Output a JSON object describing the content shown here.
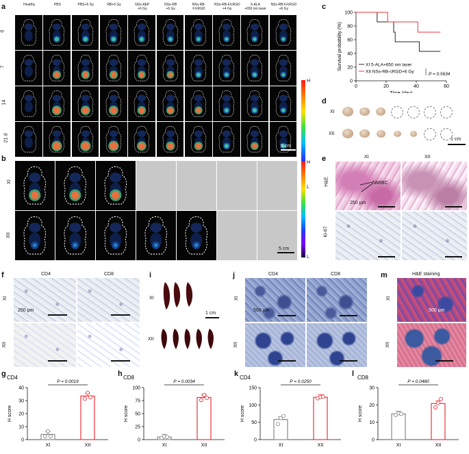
{
  "panels": {
    "a": "a",
    "b": "b",
    "c": "c",
    "d": "d",
    "e": "e",
    "f": "f",
    "g": "g",
    "h": "h",
    "i": "i",
    "j": "j",
    "k": "k",
    "l": "l",
    "m": "m"
  },
  "panel_a": {
    "columns": [
      "Healthy",
      "PBS",
      "PBS+6 Gy",
      "RB+6 Gy",
      "NSs-AEP\n+6 Gy",
      "NSs-RB\n+6 Gy",
      "NSs-RB-\nF/cRGD",
      "NSs-RB-F/cRGD\n+4 Gy",
      "5-ALA\n+650 nm laser",
      "NSs-RB-F/cRGD\n+6 Gy"
    ],
    "rows": [
      "0",
      "7",
      "14",
      "21 d"
    ],
    "colorbar_high": "H",
    "colorbar_low": "L",
    "scale_bar": "5 cm"
  },
  "panel_b": {
    "rows": [
      "XI",
      "XII"
    ],
    "colorbar_high": "H",
    "colorbar_low": "L",
    "scale_bar": "5 cm"
  },
  "panel_d": {
    "rows": [
      "XI",
      "XII"
    ],
    "scale_bar": "1 cm"
  },
  "panel_e": {
    "cols": [
      "XI",
      "XII"
    ],
    "rows": [
      "H&E",
      "Ki-67"
    ],
    "annotation": "NMIBC",
    "scale_bar": "250 μm"
  },
  "panel_f": {
    "cols": [
      "CD4",
      "CD8"
    ],
    "rows": [
      "XI",
      "XII"
    ],
    "scale_bar": "250 μm"
  },
  "panel_i": {
    "rows": [
      "XI",
      "XII"
    ],
    "scale_bar": "1 cm"
  },
  "panel_j": {
    "cols": [
      "CD4",
      "CD8"
    ],
    "rows": [
      "XI",
      "XII"
    ],
    "scale_bar": "500 μm"
  },
  "panel_m": {
    "title": "H&E staining",
    "rows": [
      "XI",
      "XII"
    ],
    "scale_bar": "500 μm"
  },
  "chart_data": [
    {
      "id": "c",
      "type": "line",
      "xlabel": "Time (day)",
      "ylabel": "Survival probability (%)",
      "xlim": [
        0,
        60
      ],
      "ylim": [
        0,
        100
      ],
      "xticks": [
        0,
        20,
        40,
        60
      ],
      "yticks": [
        0,
        20,
        40,
        60,
        80,
        100
      ],
      "pvalue": "P = 0.5634",
      "series": [
        {
          "name": "XI   5-ALA+650 nm laser",
          "color": "#222222",
          "x": [
            0,
            14,
            14,
            25,
            25,
            26,
            26,
            42,
            42,
            56
          ],
          "y": [
            100,
            100,
            86,
            86,
            71,
            71,
            57,
            57,
            43,
            43
          ]
        },
        {
          "name": "XII  NSs-RB-cRGD+6 Gy",
          "color": "#e8333a",
          "x": [
            0,
            21,
            21,
            41,
            41,
            56
          ],
          "y": [
            100,
            100,
            86,
            86,
            71,
            71
          ]
        }
      ]
    },
    {
      "id": "g",
      "type": "bar",
      "title": "CD4",
      "ylabel": "H score",
      "categories": [
        "XI",
        "XII"
      ],
      "values": [
        4,
        33.5
      ],
      "ylim": [
        0,
        40
      ],
      "yticks": [
        0,
        10,
        20,
        30,
        40
      ],
      "points": [
        [
          2.5,
          6.5,
          2.5
        ],
        [
          31.5,
          36,
          32.5
        ]
      ],
      "pvalue": "P = 0.0019",
      "colors": [
        "#888888",
        "#e8333a"
      ]
    },
    {
      "id": "h",
      "type": "bar",
      "title": "CD8",
      "ylabel": "H score",
      "categories": [
        "XI",
        "XII"
      ],
      "values": [
        5,
        81
      ],
      "ylim": [
        0,
        100
      ],
      "yticks": [
        0,
        25,
        50,
        75,
        100
      ],
      "points": [
        [
          3,
          6,
          5
        ],
        [
          76,
          86,
          80
        ]
      ],
      "pvalue": "P = 0.0034",
      "colors": [
        "#888888",
        "#e8333a"
      ]
    },
    {
      "id": "k",
      "type": "bar",
      "title": "CD4",
      "ylabel": "H score",
      "categories": [
        "XI",
        "XII"
      ],
      "values": [
        58,
        122
      ],
      "ylim": [
        0,
        150
      ],
      "yticks": [
        0,
        50,
        100,
        150
      ],
      "points": [
        [
          45,
          62,
          68
        ],
        [
          119,
          123,
          124
        ]
      ],
      "pvalue": "P = 0.0250",
      "colors": [
        "#888888",
        "#e8333a"
      ]
    },
    {
      "id": "l",
      "type": "bar",
      "title": "CD8",
      "ylabel": "H score",
      "categories": [
        "XI",
        "XII"
      ],
      "values": [
        14.8,
        20.8
      ],
      "ylim": [
        0,
        30
      ],
      "yticks": [
        0,
        10,
        20,
        30
      ],
      "points": [
        [
          14.2,
          15.2,
          14.8
        ],
        [
          18.6,
          21.2,
          23.4
        ]
      ],
      "pvalue": "P = 0.0480",
      "colors": [
        "#888888",
        "#e8333a"
      ]
    }
  ]
}
